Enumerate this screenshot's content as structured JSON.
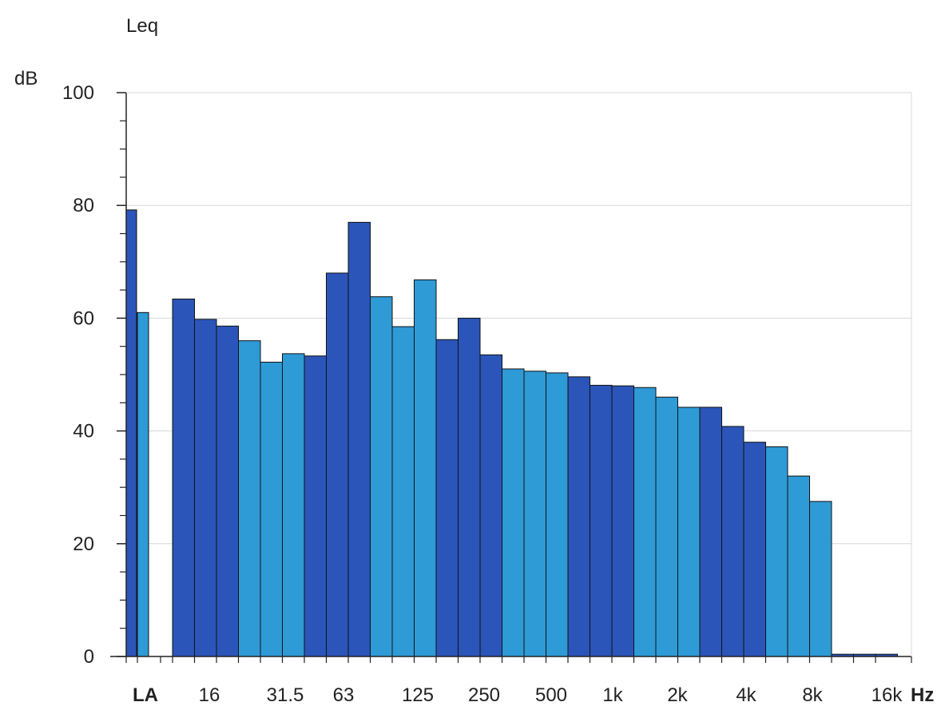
{
  "chart_data": {
    "type": "bar",
    "title": "Leq",
    "ylabel": "dB",
    "xunit": "Hz",
    "ylim": [
      0,
      100
    ],
    "yticks": [
      0,
      20,
      40,
      60,
      80,
      100
    ],
    "yticks_text": [
      "0",
      "20",
      "40",
      "60",
      "80",
      "100"
    ],
    "grid": true,
    "colors": {
      "dark": "#2B55B8",
      "light": "#2E9AD6",
      "axis": "#222222",
      "grid": "#d8d8d8",
      "text": "#222222"
    },
    "bars": [
      {
        "label": "LA",
        "value": 79.2,
        "tone": "dark"
      },
      {
        "label": "",
        "value": 61.0,
        "tone": "light"
      },
      {
        "label": "",
        "value": 63.4,
        "tone": "dark"
      },
      {
        "label": "16",
        "value": 59.8,
        "tone": "dark"
      },
      {
        "label": "",
        "value": 58.6,
        "tone": "dark"
      },
      {
        "label": "",
        "value": 56.0,
        "tone": "light"
      },
      {
        "label": "",
        "value": 52.2,
        "tone": "light"
      },
      {
        "label": "31.5",
        "value": 53.7,
        "tone": "light"
      },
      {
        "label": "",
        "value": 53.3,
        "tone": "dark"
      },
      {
        "label": "",
        "value": 68.0,
        "tone": "dark"
      },
      {
        "label": "63",
        "value": 77.0,
        "tone": "dark"
      },
      {
        "label": "",
        "value": 63.8,
        "tone": "light"
      },
      {
        "label": "",
        "value": 58.5,
        "tone": "light"
      },
      {
        "label": "125",
        "value": 66.8,
        "tone": "light"
      },
      {
        "label": "",
        "value": 56.2,
        "tone": "dark"
      },
      {
        "label": "",
        "value": 60.0,
        "tone": "dark"
      },
      {
        "label": "250",
        "value": 53.5,
        "tone": "dark"
      },
      {
        "label": "",
        "value": 51.0,
        "tone": "light"
      },
      {
        "label": "",
        "value": 50.6,
        "tone": "light"
      },
      {
        "label": "500",
        "value": 50.3,
        "tone": "light"
      },
      {
        "label": "",
        "value": 49.6,
        "tone": "dark"
      },
      {
        "label": "",
        "value": 48.1,
        "tone": "dark"
      },
      {
        "label": "1k",
        "value": 48.0,
        "tone": "dark"
      },
      {
        "label": "",
        "value": 47.7,
        "tone": "light"
      },
      {
        "label": "",
        "value": 46.0,
        "tone": "light"
      },
      {
        "label": "2k",
        "value": 44.2,
        "tone": "light"
      },
      {
        "label": "",
        "value": 44.2,
        "tone": "dark"
      },
      {
        "label": "",
        "value": 40.8,
        "tone": "dark"
      },
      {
        "label": "4k",
        "value": 38.0,
        "tone": "dark"
      },
      {
        "label": "",
        "value": 37.2,
        "tone": "light"
      },
      {
        "label": "",
        "value": 32.0,
        "tone": "light"
      },
      {
        "label": "8k",
        "value": 27.5,
        "tone": "light"
      },
      {
        "label": "",
        "value": 0.4,
        "tone": "dark"
      },
      {
        "label": "",
        "value": 0.4,
        "tone": "dark"
      },
      {
        "label": "16k",
        "value": 0.4,
        "tone": "dark"
      }
    ]
  }
}
